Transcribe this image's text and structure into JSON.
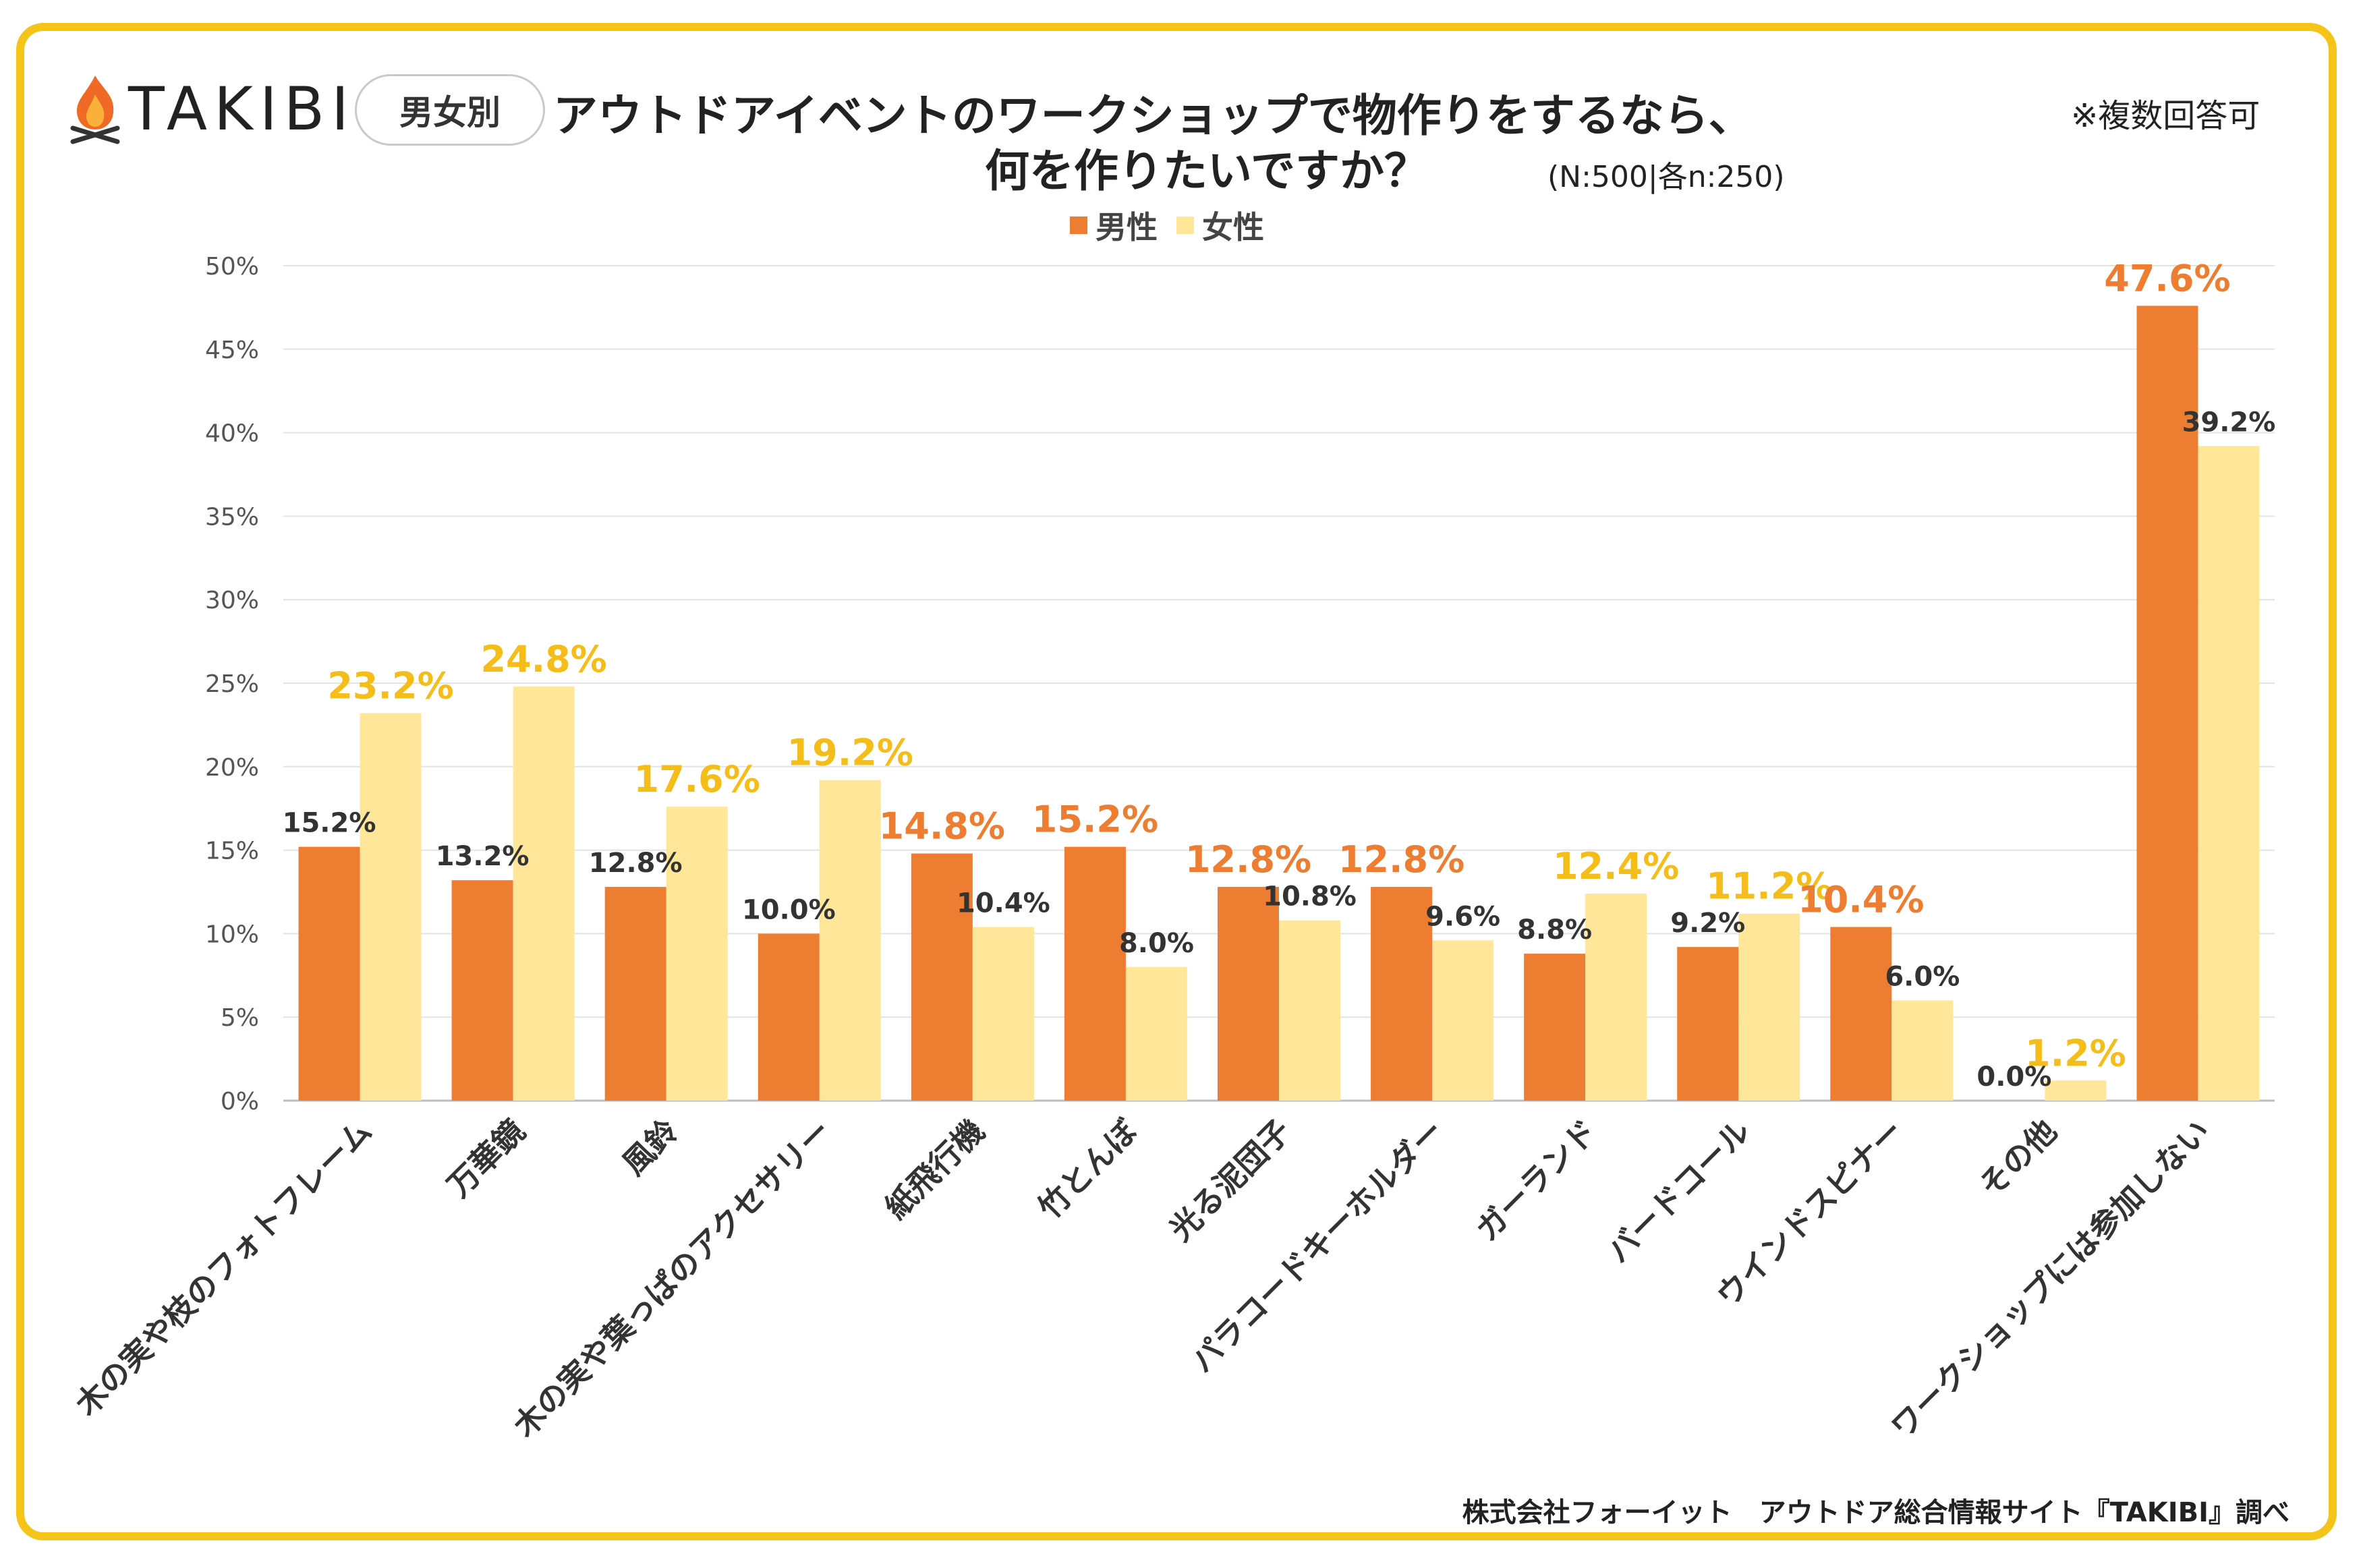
{
  "brand": {
    "name": "TAKIBI"
  },
  "badge": "男女別",
  "title": {
    "line1": "アウトドアイベントのワークショップで物作りをするなら、",
    "line2": "何を作りたいですか？",
    "sample": "(N:500|各n:250)"
  },
  "note": "※複数回答可",
  "source": "株式会社フォーイット　アウトドア総合情報サイト『TAKIBI』調べ",
  "colors": {
    "male": "#ed7d31",
    "female": "#ffe699",
    "male_highlight": "#ed7d31",
    "female_highlight": "#f5bd19",
    "label_dark": "#333333",
    "frame": "#f5c419"
  },
  "chart_data": {
    "type": "bar",
    "title": "アウトドアイベントのワークショップで物作りをするなら、何を作りたいですか？",
    "xlabel": "",
    "ylabel": "",
    "ylim": [
      0,
      50
    ],
    "yticks": [
      "0%",
      "5%",
      "10%",
      "15%",
      "20%",
      "25%",
      "30%",
      "35%",
      "40%",
      "45%",
      "50%"
    ],
    "legend_position": "top",
    "categories": [
      "木の実や枝のフォトフレーム",
      "万華鏡",
      "風鈴",
      "木の実や葉っぱのアクセサリー",
      "紙飛行機",
      "竹とんぼ",
      "光る泥団子",
      "パラコードキーホルダー",
      "ガーランド",
      "バードコール",
      "ウインドスピナー",
      "その他",
      "ワークショップには参加しない"
    ],
    "series": [
      {
        "name": "男性",
        "values": [
          15.2,
          13.2,
          12.8,
          10.0,
          14.8,
          15.2,
          12.8,
          12.8,
          8.8,
          9.2,
          10.4,
          0.0,
          47.6
        ],
        "labels": [
          "15.2%",
          "13.2%",
          "12.8%",
          "10.0%",
          "14.8%",
          "15.2%",
          "12.8%",
          "12.8%",
          "8.8%",
          "9.2%",
          "10.4%",
          "0.0%",
          "47.6%"
        ],
        "highlight": [
          false,
          false,
          false,
          false,
          true,
          true,
          true,
          true,
          false,
          false,
          true,
          false,
          true
        ]
      },
      {
        "name": "女性",
        "values": [
          23.2,
          24.8,
          17.6,
          19.2,
          10.4,
          8.0,
          10.8,
          9.6,
          12.4,
          11.2,
          6.0,
          1.2,
          39.2
        ],
        "labels": [
          "23.2%",
          "24.8%",
          "17.6%",
          "19.2%",
          "10.4%",
          "8.0%",
          "10.8%",
          "9.6%",
          "12.4%",
          "11.2%",
          "6.0%",
          "1.2%",
          "39.2%"
        ],
        "highlight": [
          true,
          true,
          true,
          true,
          false,
          false,
          false,
          false,
          true,
          true,
          false,
          true,
          false
        ]
      }
    ]
  }
}
